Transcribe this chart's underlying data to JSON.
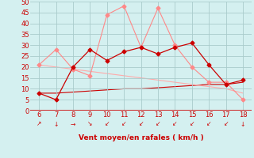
{
  "x": [
    6,
    7,
    8,
    9,
    10,
    11,
    12,
    13,
    14,
    15,
    16,
    17,
    18
  ],
  "series_dark_red": [
    8,
    5,
    20,
    28,
    23,
    27,
    29,
    26,
    29,
    31,
    21,
    12,
    14
  ],
  "series_light_red": [
    21,
    28,
    19,
    16,
    44,
    48,
    29,
    47,
    30,
    20,
    13,
    13,
    5
  ],
  "series_flat1": [
    8,
    8,
    8.5,
    9,
    9.5,
    10,
    10,
    10.5,
    11,
    11.5,
    12,
    12,
    13
  ],
  "series_flat2": [
    21,
    20,
    19,
    18,
    17,
    16,
    15,
    14,
    13,
    12,
    11,
    10,
    8
  ],
  "dark_red_color": "#cc0000",
  "light_red_color": "#ff8888",
  "flat1_color": "#cc0000",
  "flat2_color": "#ffaaaa",
  "bg_color": "#d4f0f0",
  "grid_color": "#aacccc",
  "axis_color": "#cc0000",
  "xlabel": "Vent moyen/en rafales ( km/h )",
  "ylim": [
    0,
    50
  ],
  "xlim": [
    5.5,
    18.5
  ],
  "yticks": [
    0,
    5,
    10,
    15,
    20,
    25,
    30,
    35,
    40,
    45,
    50
  ],
  "xticks": [
    6,
    7,
    8,
    9,
    10,
    11,
    12,
    13,
    14,
    15,
    16,
    17,
    18
  ],
  "arrow_chars": [
    "↗",
    "↓",
    "→",
    "↘",
    "↙",
    "↙",
    "↙",
    "↙",
    "↙",
    "↙",
    "↙",
    "↙",
    "↓"
  ]
}
